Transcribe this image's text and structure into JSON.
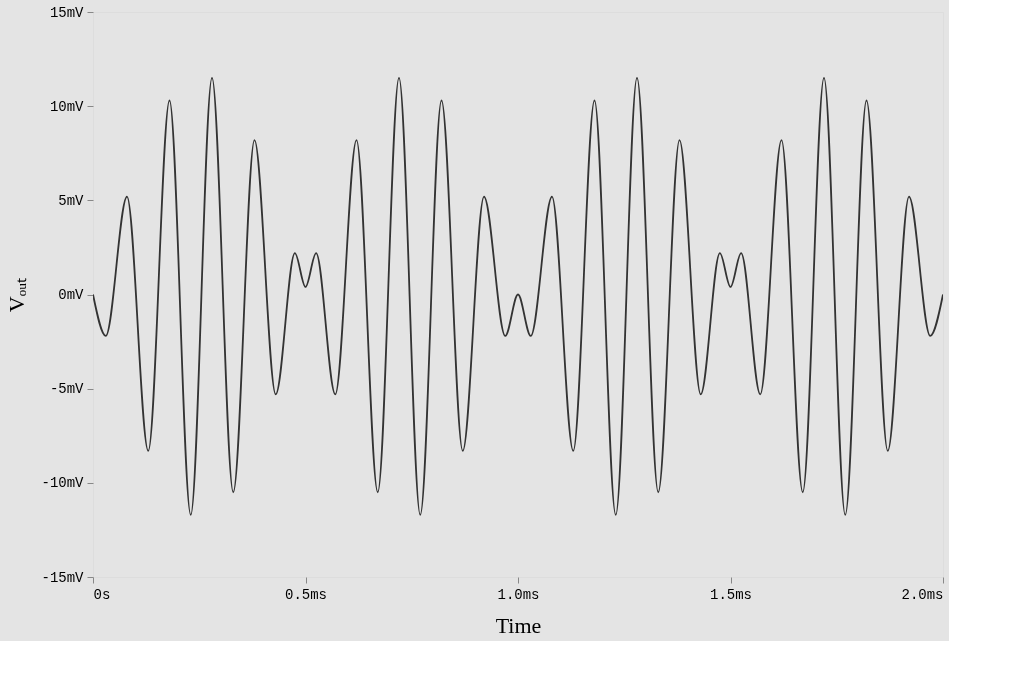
{
  "chart_data": {
    "type": "line",
    "xlabel": "Time",
    "ylabel": "Vₒᵤₜ",
    "x": [
      0,
      0.03,
      0.08,
      0.13,
      0.18,
      0.23,
      0.28,
      0.33,
      0.38,
      0.43,
      0.475,
      0.5,
      0.525,
      0.57,
      0.62,
      0.67,
      0.72,
      0.77,
      0.82,
      0.87,
      0.92,
      0.97,
      1.0,
      1.03,
      1.08,
      1.13,
      1.18,
      1.23,
      1.28,
      1.33,
      1.38,
      1.43,
      1.475,
      1.5,
      1.525,
      1.57,
      1.62,
      1.67,
      1.72,
      1.77,
      1.82,
      1.87,
      1.92,
      1.97,
      2.0
    ],
    "series": [
      {
        "color": "#333333",
        "values": [
          0,
          -2.2,
          5.2,
          -8.3,
          10.3,
          -11.7,
          11.5,
          -10.5,
          8.2,
          -5.3,
          2.2,
          0.4,
          2.2,
          -5.3,
          8.2,
          -10.5,
          11.5,
          -11.7,
          10.3,
          -8.3,
          5.2,
          -2.2,
          0,
          -2.2,
          5.2,
          -8.3,
          10.3,
          -11.7,
          11.5,
          -10.5,
          8.2,
          -5.3,
          2.2,
          0.4,
          2.2,
          -5.3,
          8.2,
          -10.5,
          11.5,
          -11.7,
          10.3,
          -8.3,
          5.2,
          -2.2,
          0
        ]
      }
    ],
    "xlim": [
      0,
      2.0
    ],
    "xticks": [
      {
        "value": 0,
        "label": "0s"
      },
      {
        "value": 0.5,
        "label": "0.5ms"
      },
      {
        "value": 1.0,
        "label": "1.0ms"
      },
      {
        "value": 1.5,
        "label": "1.5ms"
      },
      {
        "value": 2.0,
        "label": "2.0ms"
      }
    ],
    "ylim": [
      -15,
      15
    ],
    "yticks": [
      {
        "value": -15,
        "label": "-15mV"
      },
      {
        "value": -10,
        "label": "-10mV"
      },
      {
        "value": -5,
        "label": "-5mV"
      },
      {
        "value": 0,
        "label": "0mV"
      },
      {
        "value": 5,
        "label": "5mV"
      },
      {
        "value": 10,
        "label": "10mV"
      },
      {
        "value": 15,
        "label": "15mV"
      }
    ],
    "grid": false,
    "marker": "none",
    "line_style": "solid"
  }
}
